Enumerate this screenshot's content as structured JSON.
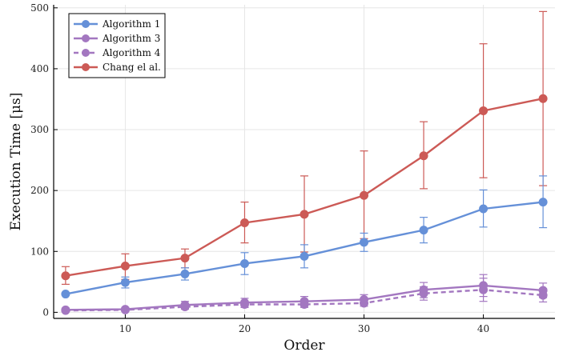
{
  "chart_data": {
    "type": "line",
    "xlabel": "Order",
    "ylabel": "Execution Time [μs]",
    "xlim": [
      4,
      46
    ],
    "ylim": [
      -10,
      505
    ],
    "xticks": [
      10,
      20,
      30,
      40
    ],
    "yticks": [
      0,
      100,
      200,
      300,
      400,
      500
    ],
    "grid": true,
    "legend_position": "top-left",
    "x": [
      5,
      10,
      15,
      20,
      25,
      30,
      35,
      40,
      45
    ],
    "series": [
      {
        "name": "Algorithm 1",
        "color": "#6590d8",
        "dashed": false,
        "values": [
          30,
          49,
          63,
          80,
          92,
          115,
          135,
          170,
          181
        ],
        "error_low": [
          28,
          40,
          53,
          62,
          73,
          100,
          114,
          140,
          139
        ],
        "error_high": [
          32,
          58,
          73,
          98,
          111,
          130,
          156,
          201,
          224
        ]
      },
      {
        "name": "Algorithm 3",
        "color": "#a377c0",
        "dashed": false,
        "values": [
          4,
          5,
          12,
          16,
          18,
          21,
          37,
          44,
          36
        ],
        "error_low": [
          1,
          2,
          6,
          8,
          10,
          13,
          24,
          26,
          24
        ],
        "error_high": [
          7,
          8,
          18,
          23,
          26,
          29,
          49,
          62,
          48
        ]
      },
      {
        "name": "Algorithm 4",
        "color": "#a377c0",
        "dashed": true,
        "values": [
          3,
          4,
          9,
          13,
          13,
          15,
          31,
          37,
          28
        ],
        "error_low": [
          1,
          2,
          5,
          8,
          8,
          10,
          20,
          18,
          17
        ],
        "error_high": [
          5,
          7,
          14,
          18,
          19,
          22,
          42,
          56,
          39
        ]
      },
      {
        "name": "Chang el al.",
        "color": "#cc5a56",
        "dashed": false,
        "values": [
          60,
          76,
          89,
          147,
          161,
          192,
          257,
          331,
          351
        ],
        "error_low": [
          46,
          54,
          73,
          114,
          99,
          121,
          203,
          221,
          208
        ],
        "error_high": [
          75,
          96,
          104,
          181,
          224,
          265,
          313,
          441,
          494
        ]
      }
    ]
  }
}
